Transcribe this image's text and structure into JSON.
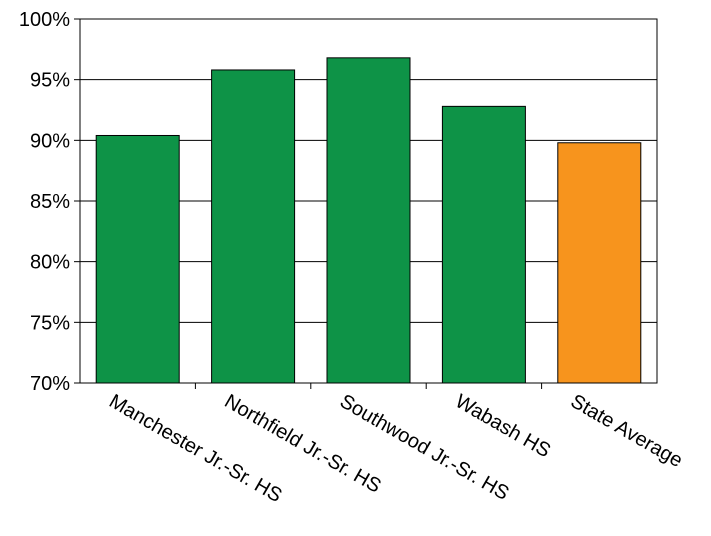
{
  "chart_data": {
    "type": "bar",
    "title": "",
    "xlabel": "",
    "ylabel": "",
    "categories": [
      "Manchester Jr.-Sr. HS",
      "Northfield Jr.-Sr. HS",
      "Southwood Jr.-Sr. HS",
      "Wabash HS",
      "State Average"
    ],
    "values": [
      90.4,
      95.8,
      96.8,
      92.8,
      89.8
    ],
    "value_unit": "%",
    "ylim": [
      70,
      100
    ],
    "yticks": [
      70,
      75,
      80,
      85,
      90,
      95,
      100
    ],
    "ytick_labels": [
      "70%",
      "75%",
      "80%",
      "85%",
      "90%",
      "95%",
      "100%"
    ],
    "grid": true,
    "legend": "none",
    "bar_colors": [
      "#0e9347",
      "#0e9347",
      "#0e9347",
      "#0e9347",
      "#f7941d"
    ]
  }
}
